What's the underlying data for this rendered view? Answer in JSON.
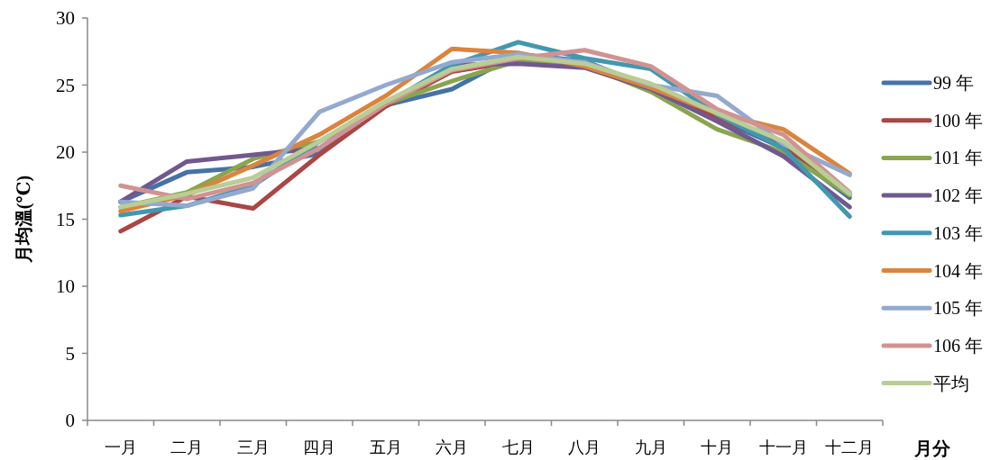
{
  "chart_data": {
    "type": "line",
    "xlabel": "月分",
    "ylabel": "月均溫(℃)",
    "categories": [
      "一月",
      "二月",
      "三月",
      "四月",
      "五月",
      "六月",
      "七月",
      "八月",
      "九月",
      "十月",
      "十一月",
      "十二月"
    ],
    "ylim": [
      0,
      30
    ],
    "yticks": [
      0,
      5,
      10,
      15,
      20,
      25,
      30
    ],
    "grid": false,
    "legend": "right",
    "marker": "none",
    "line_style": "solid",
    "series": [
      {
        "name": "99 年",
        "color": "#4572a7",
        "values": [
          16.3,
          18.5,
          18.9,
          19.9,
          23.5,
          24.7,
          27.3,
          26.8,
          24.8,
          22.5,
          20.3,
          16.6
        ]
      },
      {
        "name": "100 年",
        "color": "#aa4643",
        "values": [
          14.1,
          16.7,
          15.8,
          19.8,
          23.4,
          26.0,
          26.8,
          26.4,
          24.8,
          22.6,
          20.5,
          16.9
        ]
      },
      {
        "name": "101 年",
        "color": "#89a54e",
        "values": [
          15.9,
          17.0,
          19.5,
          20.8,
          23.6,
          25.3,
          26.8,
          26.5,
          24.5,
          21.7,
          20.0,
          16.8
        ]
      },
      {
        "name": "102 年",
        "color": "#71588f",
        "values": [
          16.3,
          19.3,
          19.8,
          20.3,
          23.6,
          26.5,
          26.6,
          26.3,
          24.7,
          22.3,
          19.7,
          15.9
        ]
      },
      {
        "name": "103 年",
        "color": "#4198af",
        "values": [
          15.3,
          16.0,
          17.5,
          20.8,
          23.6,
          26.5,
          28.2,
          27.0,
          26.2,
          22.8,
          20.3,
          15.2
        ]
      },
      {
        "name": "104 年",
        "color": "#db843d",
        "values": [
          15.6,
          16.8,
          19.0,
          21.3,
          24.2,
          27.7,
          27.4,
          26.4,
          24.8,
          22.9,
          21.7,
          18.4
        ]
      },
      {
        "name": "105 年",
        "color": "#93a9cf",
        "values": [
          16.3,
          16.0,
          17.3,
          23.0,
          25.0,
          26.7,
          27.3,
          26.7,
          25.0,
          24.2,
          20.6,
          18.3
        ]
      },
      {
        "name": "106 年",
        "color": "#d19392",
        "values": [
          17.5,
          16.5,
          17.7,
          20.3,
          23.6,
          26.1,
          27.0,
          27.6,
          26.4,
          23.2,
          21.3,
          17.0
        ]
      },
      {
        "name": "平均",
        "color": "#b9cd96",
        "values": [
          15.9,
          16.9,
          18.1,
          20.8,
          23.8,
          26.2,
          27.1,
          26.6,
          25.1,
          22.9,
          20.8,
          16.9
        ]
      }
    ]
  }
}
